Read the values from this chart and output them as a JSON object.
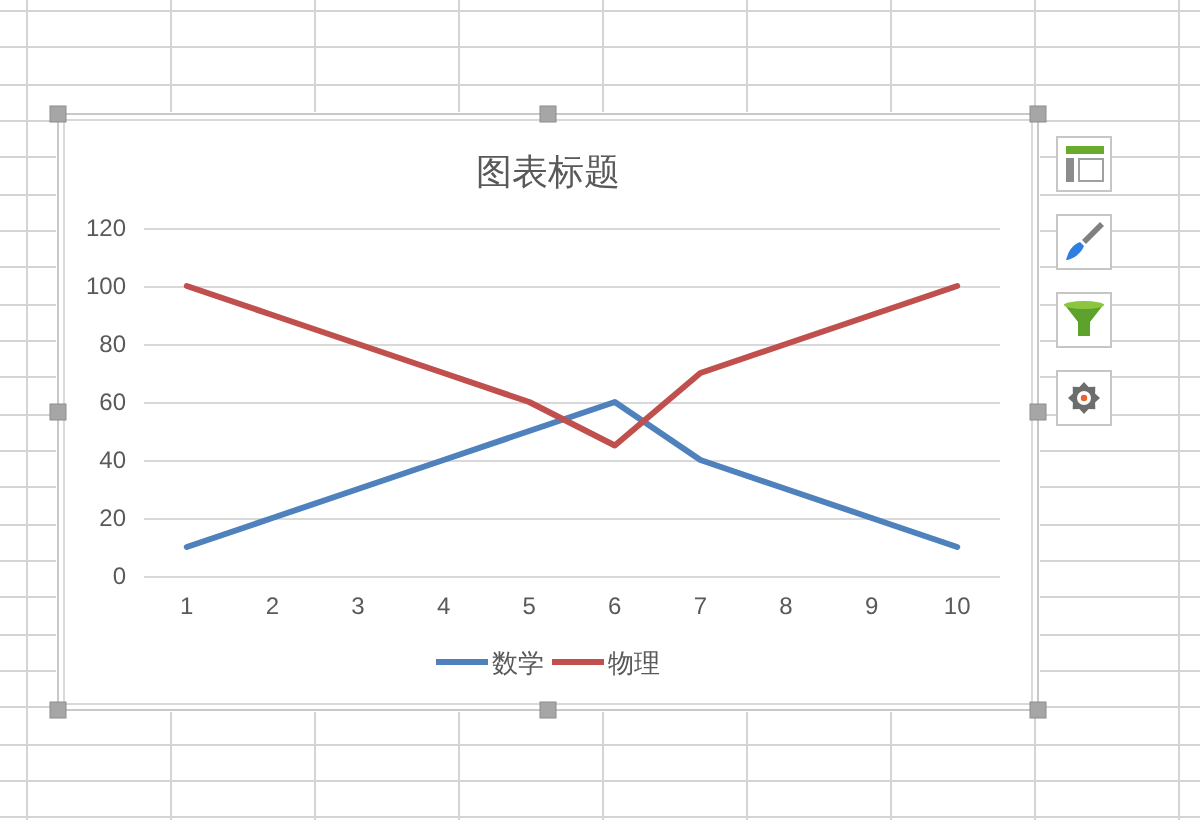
{
  "chart_data": {
    "type": "line",
    "title": "图表标题",
    "categories": [
      "1",
      "2",
      "3",
      "4",
      "5",
      "6",
      "7",
      "8",
      "9",
      "10"
    ],
    "series": [
      {
        "name": "数学",
        "color": "#4f81bd",
        "values": [
          10,
          20,
          30,
          40,
          50,
          60,
          40,
          30,
          20,
          10
        ]
      },
      {
        "name": "物理",
        "color": "#c0504d",
        "values": [
          100,
          90,
          80,
          70,
          60,
          45,
          70,
          80,
          90,
          100
        ]
      }
    ],
    "ylim": [
      0,
      120
    ],
    "yticks": [
      0,
      20,
      40,
      60,
      80,
      100,
      120
    ],
    "grid": "y",
    "legend": "bottom",
    "marker": "none",
    "line_style": "solid"
  }
}
